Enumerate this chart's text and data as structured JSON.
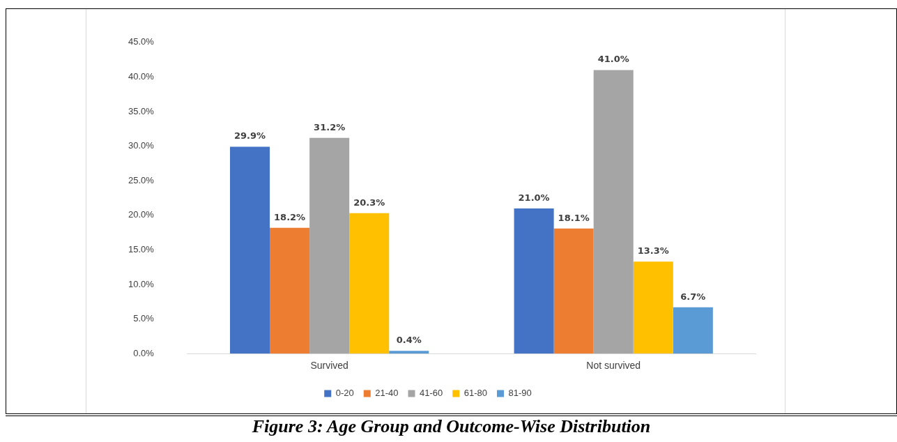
{
  "chart_data": {
    "type": "bar",
    "title": "Figure 3: Age Group and Outcome-Wise Distribution",
    "categories": [
      "Survived",
      "Not survived"
    ],
    "series": [
      {
        "name": "0-20",
        "color": "#4472c4",
        "values": [
          29.9,
          21.0
        ],
        "value_labels": [
          "29.9%",
          "21.0%"
        ]
      },
      {
        "name": "21-40",
        "color": "#ed7d31",
        "values": [
          18.2,
          18.1
        ],
        "value_labels": [
          "18.2%",
          "18.1%"
        ]
      },
      {
        "name": "41-60",
        "color": "#a5a5a5",
        "values": [
          31.2,
          41.0
        ],
        "value_labels": [
          "31.2%",
          "41.0%"
        ]
      },
      {
        "name": "61-80",
        "color": "#ffc000",
        "values": [
          20.3,
          13.3
        ],
        "value_labels": [
          "20.3%",
          "13.3%"
        ]
      },
      {
        "name": "81-90",
        "color": "#5b9bd5",
        "values": [
          0.4,
          6.7
        ],
        "value_labels": [
          "0.4%",
          "6.7%"
        ]
      }
    ],
    "ylim": [
      0,
      45
    ],
    "yticks": [
      {
        "value": 0,
        "label": "0.0%"
      },
      {
        "value": 5,
        "label": "5.0%"
      },
      {
        "value": 10,
        "label": "10.0%"
      },
      {
        "value": 15,
        "label": "15.0%"
      },
      {
        "value": 20,
        "label": "20.0%"
      },
      {
        "value": 25,
        "label": "25.0%"
      },
      {
        "value": 30,
        "label": "30.0%"
      },
      {
        "value": 35,
        "label": "35.0%"
      },
      {
        "value": 40,
        "label": "40.0%"
      },
      {
        "value": 45,
        "label": "45.0%"
      }
    ],
    "grid": false,
    "legend": "bottom"
  }
}
